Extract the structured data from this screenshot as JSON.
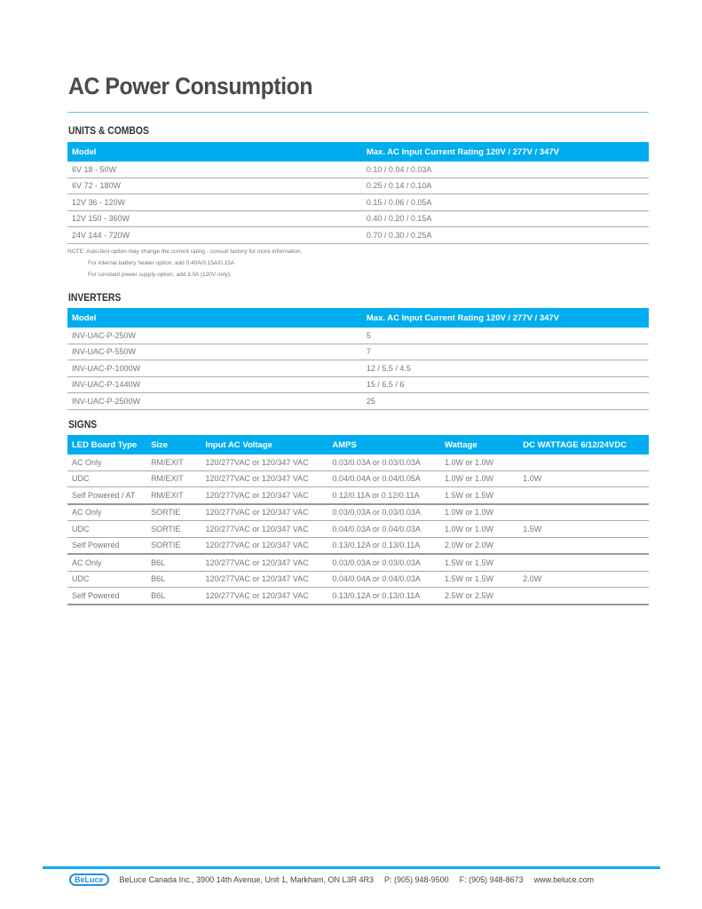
{
  "title": "AC Power Consumption",
  "units": {
    "heading": "UNITS & COMBOS",
    "headers": [
      "Model",
      "Max. AC Input Current Rating 120V / 277V / 347V"
    ],
    "rows": [
      [
        "6V 18 - 50W",
        "0.10 / 0.04 / 0.03A"
      ],
      [
        "6V 72 - 180W",
        "0.25 / 0.14 / 0.10A"
      ],
      [
        "12V 36 - 120W",
        "0.15 / 0.06 / 0.05A"
      ],
      [
        "12V 150 - 360W",
        "0.40 / 0.20 / 0.15A"
      ],
      [
        "24V 144 - 720W",
        "0.70 / 0.30 / 0.25A"
      ]
    ],
    "notes": [
      "NOTE: Auto-test option may change the current rating - consult factory for more information.",
      "For internal battery heater option, add 0.40A/0.15A/0.15A",
      "For constant power supply option, add 3.0A (120V only)."
    ]
  },
  "inverters": {
    "heading": "INVERTERS",
    "headers": [
      "Model",
      "Max. AC Input Current Rating 120V / 277V / 347V"
    ],
    "rows": [
      [
        "INV-UAC-P-250W",
        "5"
      ],
      [
        "INV-UAC-P-550W",
        "7"
      ],
      [
        "INV-UAC-P-1000W",
        "12 / 5.5 / 4.5"
      ],
      [
        "INV-UAC-P-1440W",
        "15 / 6.5 / 6"
      ],
      [
        "INV-UAC-P-2500W",
        "25"
      ]
    ]
  },
  "signs": {
    "heading": "SIGNS",
    "headers": [
      "LED Board Type",
      "Size",
      "Input AC Voltage",
      "AMPS",
      "Wattage",
      "DC WATTAGE 6/12/24VDC"
    ],
    "rows": [
      [
        "AC Only",
        "RM/EXIT",
        "120/277VAC or 120/347 VAC",
        "0.03/0.03A or 0.03/0.03A",
        "1.0W or 1.0W",
        ""
      ],
      [
        "UDC",
        "RM/EXIT",
        "120/277VAC or 120/347 VAC",
        "0.04/0.04A or 0.04/0.05A",
        "1.0W or 1.0W",
        "1.0W"
      ],
      [
        "Self Powered / AT",
        "RM/EXIT",
        "120/277VAC or 120/347 VAC",
        "0.12/0.11A or 0.12/0.11A",
        "1.5W or 1.5W",
        ""
      ],
      [
        "AC Only",
        "SORTIE",
        "120/277VAC or 120/347 VAC",
        "0.03/0.03A or 0.03/0.03A",
        "1.0W or 1.0W",
        ""
      ],
      [
        "UDC",
        "SORTIE",
        "120/277VAC or 120/347 VAC",
        "0.04/0.03A or 0.04/0.03A",
        "1.0W or 1.0W",
        "1.5W"
      ],
      [
        "Self Powered",
        "SORTIE",
        "120/277VAC or 120/347 VAC",
        "0.13/0.12A or 0.13/0.11A",
        "2.0W or 2.0W",
        ""
      ],
      [
        "AC Only",
        "B6L",
        "120/277VAC or 120/347 VAC",
        "0.03/0.03A or 0.03/0.03A",
        "1.5W or 1.5W",
        ""
      ],
      [
        "UDC",
        "B6L",
        "120/277VAC or 120/347 VAC",
        "0.04/0.04A or 0.04/0.03A",
        "1.5W or 1.5W",
        "2.0W"
      ],
      [
        "Self Powered",
        "B6L",
        "120/277VAC or 120/347 VAC",
        "0.13/0.12A or 0.13/0.11A",
        "2.5W or 2.5W",
        ""
      ]
    ]
  },
  "footer": {
    "logo": "BeLuce",
    "address": "BeLuce Canada Inc., 3900 14th Avenue, Unit 1, Markham, ON L3R 4R3",
    "phone": "P: (905) 948-9500",
    "fax": "F: (905) 948-8673",
    "web": "www.beluce.com"
  }
}
